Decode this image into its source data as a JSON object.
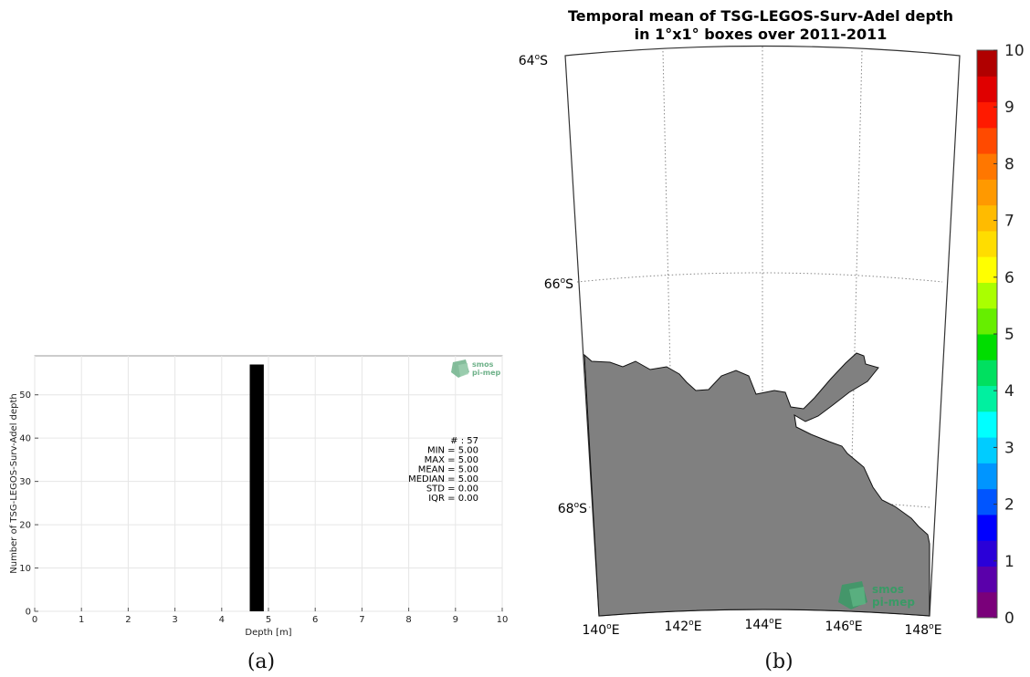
{
  "chart_data": [
    {
      "type": "bar",
      "panel_caption": "(a)",
      "xlabel": "Depth [m]",
      "ylabel": "Number of TSG-LEGOS-Surv-Adel depth",
      "xlim": [
        0,
        10
      ],
      "ylim": [
        0,
        59
      ],
      "xticks": [
        "0",
        "1",
        "2",
        "3",
        "4",
        "5",
        "6",
        "7",
        "8",
        "9",
        "10"
      ],
      "yticks": [
        "0",
        "10",
        "20",
        "30",
        "40",
        "50"
      ],
      "grid": true,
      "bars": [
        {
          "x0": 4.6,
          "x1": 4.9,
          "value": 57
        }
      ],
      "bar_color": "#000000",
      "stats": [
        "# : 57",
        "MIN = 5.00",
        "MAX =  5.00",
        "MEAN = 5.00",
        "MEDIAN = 5.00",
        "STD = 0.00",
        "IQR = 0.00"
      ],
      "logo": [
        "smos",
        "pi-mep"
      ],
      "logo_color": "#5aa57a"
    },
    {
      "type": "heatmap",
      "panel_caption": "(b)",
      "title": "Temporal mean of TSG-LEGOS-Surv-Adel depth",
      "subtitle": "in 1°x1° boxes over 2011-2011",
      "lat_labels": [
        "64",
        "66",
        "68"
      ],
      "lat_suffix": "S",
      "lon_labels": [
        "140",
        "142",
        "144",
        "146",
        "148"
      ],
      "lon_suffix": "E",
      "land_color": "#808080",
      "colorbar_ticks": [
        "0",
        "1",
        "2",
        "3",
        "4",
        "5",
        "6",
        "7",
        "8",
        "9",
        "10"
      ],
      "colorbar_range": [
        0,
        10
      ],
      "colorbar_colors": [
        "#7a007a",
        "#5a00aa",
        "#2a00d8",
        "#0000ff",
        "#0055ff",
        "#0095ff",
        "#00ccff",
        "#00ffff",
        "#00f0a0",
        "#00e060",
        "#00dd00",
        "#66ee00",
        "#aaff00",
        "#ffff00",
        "#ffdd00",
        "#ffbb00",
        "#ff9900",
        "#ff7700",
        "#ff4a00",
        "#ff1a00",
        "#e00000",
        "#b00000"
      ],
      "logo": [
        "smos",
        "pi-mep"
      ],
      "logo_color": "#2e8b57"
    }
  ]
}
